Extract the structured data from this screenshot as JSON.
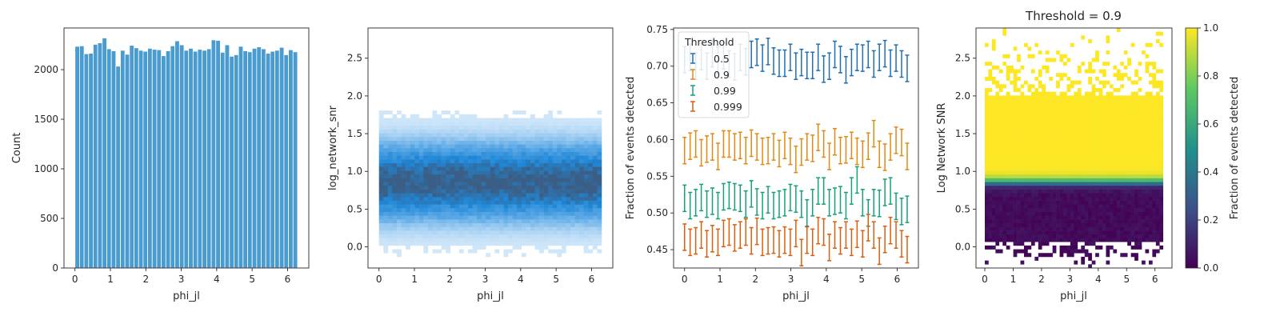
{
  "chart_data": [
    {
      "type": "bar",
      "title": "",
      "xlabel": "phi_jl",
      "ylabel": "Count",
      "xlim": [
        -0.31,
        6.6
      ],
      "ylim": [
        0,
        2420
      ],
      "xticks": [
        "0",
        "1",
        "2",
        "3",
        "4",
        "5",
        "6"
      ],
      "yticks": [
        "0",
        "500",
        "1000",
        "1500",
        "2000"
      ],
      "bin_start": 0,
      "bin_end": 6.2832,
      "values": [
        2235,
        2240,
        2160,
        2165,
        2255,
        2270,
        2320,
        2210,
        2190,
        2035,
        2195,
        2155,
        2245,
        2220,
        2195,
        2185,
        2215,
        2205,
        2200,
        2140,
        2190,
        2240,
        2290,
        2250,
        2195,
        2215,
        2185,
        2205,
        2195,
        2210,
        2300,
        2295,
        2175,
        2250,
        2135,
        2150,
        2235,
        2190,
        2180,
        2215,
        2230,
        2210,
        2165,
        2185,
        2195,
        2225,
        2150,
        2200,
        2180
      ],
      "color": "#4a9bd0"
    },
    {
      "type": "heatmap",
      "title": "",
      "xlabel": "phi_jl",
      "ylabel": "log_network_snr",
      "xlim": [
        -0.31,
        6.6
      ],
      "ylim": [
        -0.28,
        2.9
      ],
      "xticks": [
        "0",
        "1",
        "2",
        "3",
        "4",
        "5",
        "6"
      ],
      "yticks": [
        "0.0",
        "0.5",
        "1.0",
        "1.5",
        "2.0",
        "2.5"
      ],
      "x_range": [
        0,
        6.2832
      ],
      "y_range": [
        -0.28,
        2.9
      ],
      "peak_y": 0.86,
      "spread_y": 0.33,
      "colormap": [
        "#ffffff",
        "#c9e3f8",
        "#5aa8e6",
        "#1f87d6",
        "#3a5e85"
      ]
    },
    {
      "type": "scatter",
      "title": "",
      "xlabel": "phi_jl",
      "ylabel": "Fraction of events detected",
      "xlim": [
        -0.31,
        6.6
      ],
      "ylim": [
        0.425,
        0.752
      ],
      "xticks": [
        "0",
        "1",
        "2",
        "3",
        "4",
        "5",
        "6"
      ],
      "yticks": [
        "0.45",
        "0.50",
        "0.55",
        "0.60",
        "0.65",
        "0.70",
        "0.75"
      ],
      "legend_title": "Threshold",
      "legend_position": "top-left",
      "x_start": 0,
      "x_end": 6.2832,
      "error_half_width": 0.018,
      "series": [
        {
          "name": "0.5",
          "color": "#1f6fb0",
          "values": [
            0.709,
            0.712,
            0.7,
            0.713,
            0.7,
            0.717,
            0.708,
            0.714,
            0.703,
            0.699,
            0.712,
            0.706,
            0.716,
            0.719,
            0.711,
            0.72,
            0.707,
            0.704,
            0.704,
            0.712,
            0.7,
            0.705,
            0.701,
            0.701,
            0.712,
            0.696,
            0.7,
            0.716,
            0.709,
            0.695,
            0.705,
            0.712,
            0.711,
            0.716,
            0.703,
            0.712,
            0.717,
            0.704,
            0.711,
            0.703,
            0.697
          ]
        },
        {
          "name": "0.9",
          "color": "#e08a14",
          "values": [
            0.585,
            0.591,
            0.594,
            0.582,
            0.587,
            0.59,
            0.577,
            0.594,
            0.594,
            0.59,
            0.592,
            0.585,
            0.595,
            0.59,
            0.584,
            0.585,
            0.59,
            0.581,
            0.592,
            0.584,
            0.573,
            0.583,
            0.59,
            0.588,
            0.603,
            0.594,
            0.577,
            0.597,
            0.585,
            0.586,
            0.592,
            0.584,
            0.58,
            0.591,
            0.608,
            0.58,
            0.576,
            0.59,
            0.599,
            0.596,
            0.577
          ]
        },
        {
          "name": "0.99",
          "color": "#16a07a",
          "values": [
            0.52,
            0.51,
            0.514,
            0.521,
            0.512,
            0.516,
            0.51,
            0.522,
            0.524,
            0.522,
            0.52,
            0.512,
            0.526,
            0.515,
            0.51,
            0.518,
            0.51,
            0.512,
            0.514,
            0.521,
            0.519,
            0.512,
            0.5,
            0.514,
            0.53,
            0.53,
            0.514,
            0.516,
            0.518,
            0.51,
            0.53,
            0.545,
            0.514,
            0.5,
            0.514,
            0.513,
            0.528,
            0.53,
            0.509,
            0.502,
            0.505
          ]
        },
        {
          "name": "0.999",
          "color": "#d95f0e",
          "values": [
            0.467,
            0.46,
            0.462,
            0.47,
            0.458,
            0.465,
            0.46,
            0.472,
            0.474,
            0.466,
            0.47,
            0.474,
            0.462,
            0.475,
            0.46,
            0.462,
            0.463,
            0.458,
            0.463,
            0.46,
            0.472,
            0.446,
            0.463,
            0.46,
            0.476,
            0.474,
            0.453,
            0.47,
            0.462,
            0.47,
            0.46,
            0.471,
            0.458,
            0.48,
            0.47,
            0.448,
            0.464,
            0.476,
            0.47,
            0.458,
            0.45
          ]
        }
      ]
    },
    {
      "type": "heatmap",
      "title": "Threshold = 0.9",
      "xlabel": "phi_jl",
      "ylabel": "Log Network SNR",
      "xlim": [
        -0.31,
        6.6
      ],
      "ylim": [
        -0.28,
        2.9
      ],
      "xticks": [
        "0",
        "1",
        "2",
        "3",
        "4",
        "5",
        "6"
      ],
      "yticks": [
        "0.0",
        "0.5",
        "1.0",
        "1.5",
        "2.0",
        "2.5"
      ],
      "x_range": [
        0,
        6.2832
      ],
      "y_range": [
        -0.28,
        2.9
      ],
      "transition_y": 0.86,
      "colorbar": {
        "label": "Fraction of events detected",
        "range": [
          0.0,
          1.0
        ],
        "ticks": [
          "0.0",
          "0.2",
          "0.4",
          "0.6",
          "0.8",
          "1.0"
        ]
      },
      "colormap": [
        "#440154",
        "#3b528b",
        "#21918c",
        "#5ec962",
        "#fde725"
      ]
    }
  ]
}
